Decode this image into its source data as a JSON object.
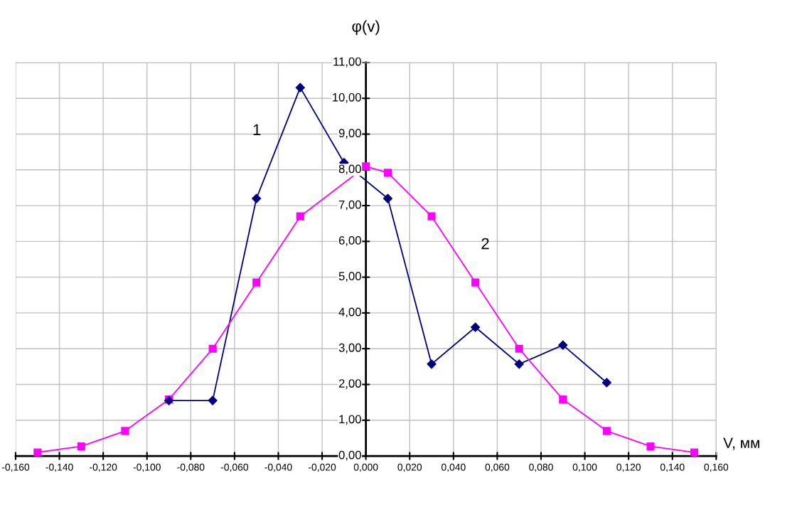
{
  "chart_data": {
    "type": "line",
    "ylabel": "φ(v)",
    "xlabel": "V, мм",
    "xlim": [
      -0.16,
      0.16
    ],
    "ylim": [
      0,
      11
    ],
    "xticks": [
      {
        "value": -0.16,
        "label": "-0,160"
      },
      {
        "value": -0.14,
        "label": "-0,140"
      },
      {
        "value": -0.12,
        "label": "-0,120"
      },
      {
        "value": -0.1,
        "label": "-0,100"
      },
      {
        "value": -0.08,
        "label": "-0,080"
      },
      {
        "value": -0.06,
        "label": "-0,060"
      },
      {
        "value": -0.04,
        "label": "-0,040"
      },
      {
        "value": -0.02,
        "label": "-0,020"
      },
      {
        "value": 0,
        "label": "0,000"
      },
      {
        "value": 0.02,
        "label": "0,020"
      },
      {
        "value": 0.04,
        "label": "0,040"
      },
      {
        "value": 0.06,
        "label": "0,060"
      },
      {
        "value": 0.08,
        "label": "0,080"
      },
      {
        "value": 0.1,
        "label": "0,100"
      },
      {
        "value": 0.12,
        "label": "0,120"
      },
      {
        "value": 0.14,
        "label": "0,140"
      },
      {
        "value": 0.16,
        "label": "0,160"
      }
    ],
    "yticks": [
      {
        "value": 0,
        "label": "0,00"
      },
      {
        "value": 1,
        "label": "1,00"
      },
      {
        "value": 2,
        "label": "2,00"
      },
      {
        "value": 3,
        "label": "3,00"
      },
      {
        "value": 4,
        "label": "4,00"
      },
      {
        "value": 5,
        "label": "5,00"
      },
      {
        "value": 6,
        "label": "6,00"
      },
      {
        "value": 7,
        "label": "7,00"
      },
      {
        "value": 8,
        "label": "8,00"
      },
      {
        "value": 9,
        "label": "9,00"
      },
      {
        "value": 10,
        "label": "10,00"
      },
      {
        "value": 11,
        "label": "11,00"
      }
    ],
    "grid": true,
    "series": [
      {
        "name": "1",
        "color": "#000080",
        "marker": "diamond",
        "x": [
          -0.09,
          -0.07,
          -0.05,
          -0.03,
          -0.01,
          0.01,
          0.03,
          0.05,
          0.07,
          0.09,
          0.11
        ],
        "values": [
          1.55,
          1.55,
          7.2,
          10.3,
          8.2,
          7.2,
          2.57,
          3.6,
          2.57,
          3.1,
          2.05
        ]
      },
      {
        "name": "2",
        "color": "#ff00ff",
        "marker": "square",
        "x": [
          -0.15,
          -0.13,
          -0.11,
          -0.09,
          -0.07,
          -0.05,
          -0.03,
          0.0,
          0.01,
          0.03,
          0.05,
          0.07,
          0.09,
          0.11,
          0.13,
          0.15
        ],
        "values": [
          0.1,
          0.27,
          0.7,
          1.58,
          3.0,
          4.85,
          6.7,
          8.1,
          7.92,
          6.7,
          4.85,
          3.0,
          1.58,
          0.7,
          0.27,
          0.1
        ]
      }
    ]
  }
}
